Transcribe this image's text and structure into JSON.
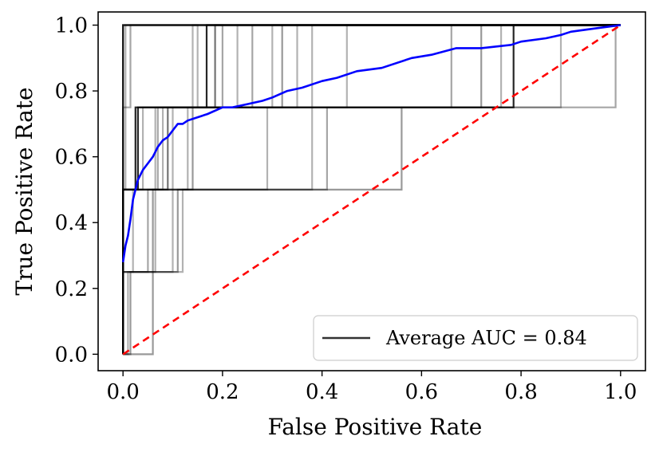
{
  "chart_data": {
    "type": "line",
    "xlabel": "False Positive Rate",
    "ylabel": "True Positive Rate",
    "xlim": [
      -0.05,
      1.05
    ],
    "ylim": [
      -0.05,
      1.04
    ],
    "xticks": [
      "0.0",
      "0.2",
      "0.4",
      "0.6",
      "0.8",
      "1.0"
    ],
    "yticks": [
      "0.0",
      "0.2",
      "0.4",
      "0.6",
      "0.8",
      "1.0"
    ],
    "xtick_values": [
      0,
      0.2,
      0.4,
      0.6,
      0.8,
      1.0
    ],
    "ytick_values": [
      0,
      0.2,
      0.4,
      0.6,
      0.8,
      1.0
    ],
    "grid": false,
    "legend": {
      "placement": "bottom-right",
      "entries": [
        {
          "label": "Average AUC = 0.84",
          "color": "#333333"
        }
      ]
    },
    "colors": {
      "mean_curve": "#0000ff",
      "chance_line": "#ff0000",
      "fold_curves": "#000000"
    },
    "mean_curve": {
      "x": [
        0,
        0.005,
        0.01,
        0.015,
        0.02,
        0.025,
        0.03,
        0.04,
        0.05,
        0.06,
        0.07,
        0.08,
        0.09,
        0.1,
        0.11,
        0.12,
        0.13,
        0.15,
        0.17,
        0.2,
        0.22,
        0.25,
        0.28,
        0.3,
        0.33,
        0.36,
        0.4,
        0.43,
        0.47,
        0.52,
        0.58,
        0.62,
        0.67,
        0.72,
        0.78,
        0.8,
        0.85,
        0.88,
        0.9,
        0.95,
        1.0
      ],
      "y": [
        0.28,
        0.33,
        0.36,
        0.41,
        0.47,
        0.5,
        0.53,
        0.56,
        0.58,
        0.6,
        0.63,
        0.65,
        0.66,
        0.68,
        0.7,
        0.7,
        0.71,
        0.72,
        0.73,
        0.75,
        0.75,
        0.76,
        0.77,
        0.78,
        0.8,
        0.81,
        0.83,
        0.84,
        0.86,
        0.87,
        0.9,
        0.91,
        0.93,
        0.93,
        0.94,
        0.95,
        0.96,
        0.97,
        0.98,
        0.99,
        1.0
      ]
    },
    "chance_line": {
      "x": [
        0,
        1
      ],
      "y": [
        0,
        1
      ]
    },
    "fold_curves": [
      {
        "alpha": 0.85,
        "x": [
          0,
          0,
          0.025,
          0.025,
          0.168,
          0.168,
          0.785,
          0.785,
          1.0
        ],
        "y": [
          0,
          0.5,
          0.5,
          0.75,
          0.75,
          1.0,
          1.0,
          1.0,
          1.0
        ]
      },
      {
        "alpha": 0.85,
        "x": [
          0,
          0,
          0.0,
          0.0,
          0.03,
          0.03,
          0.785,
          0.785,
          1.0
        ],
        "y": [
          0,
          0.25,
          0.25,
          0.5,
          0.5,
          0.75,
          0.75,
          1.0,
          1.0
        ]
      },
      {
        "alpha": 0.75,
        "x": [
          0,
          0,
          0.0,
          0.0,
          0.0,
          0.0,
          0.405,
          0.405,
          1.0
        ],
        "y": [
          0,
          0.5,
          0.5,
          0.75,
          0.75,
          1.0,
          1.0,
          1.0,
          1.0
        ]
      },
      {
        "alpha": 0.7,
        "x": [
          0,
          0,
          0.0,
          0.0,
          0.61,
          0.61,
          1.0
        ],
        "y": [
          0,
          0.5,
          0.5,
          1.0,
          1.0,
          1.0,
          1.0
        ]
      },
      {
        "alpha": 0.55,
        "x": [
          0,
          0,
          0.09,
          0.09,
          0.185,
          0.185,
          0.47,
          0.47,
          1.0
        ],
        "y": [
          0,
          0.5,
          0.5,
          0.75,
          0.75,
          1.0,
          1.0,
          1.0,
          1.0
        ]
      },
      {
        "alpha": 0.4,
        "x": [
          0,
          0.06,
          0.06,
          0.06,
          0.56,
          0.56,
          0.72,
          0.72,
          1.0
        ],
        "y": [
          0,
          0,
          0.25,
          0.5,
          0.5,
          0.75,
          0.75,
          1.0,
          1.0
        ]
      },
      {
        "alpha": 0.4,
        "x": [
          0,
          0.015,
          0.015,
          0.11,
          0.11,
          0.14,
          0.14,
          0.32,
          0.32,
          1.0
        ],
        "y": [
          0,
          0,
          0.25,
          0.25,
          0.5,
          0.5,
          0.75,
          0.75,
          1.0,
          1.0
        ]
      },
      {
        "alpha": 0.35,
        "x": [
          0,
          0,
          0.015,
          0.015,
          0.2,
          0.2,
          0.99,
          0.99,
          1.0
        ],
        "y": [
          0,
          0.75,
          0.75,
          1.0,
          1.0,
          0.75,
          0.75,
          1.0,
          1.0
        ]
      },
      {
        "alpha": 0.35,
        "x": [
          0,
          0,
          0.05,
          0.05,
          0.41,
          0.41,
          0.66,
          0.66,
          1.0
        ],
        "y": [
          0,
          0.25,
          0.25,
          0.5,
          0.5,
          0.75,
          0.75,
          1.0,
          1.0
        ]
      },
      {
        "alpha": 0.35,
        "x": [
          0,
          0,
          0.07,
          0.07,
          0.26,
          0.26,
          0.53,
          0.53,
          1.0
        ],
        "y": [
          0,
          0.5,
          0.5,
          0.75,
          0.75,
          1.0,
          1.0,
          1.0,
          1.0
        ]
      },
      {
        "alpha": 0.3,
        "x": [
          0,
          0,
          0.1,
          0.1,
          0.23,
          0.23,
          0.86,
          0.86,
          1.0
        ],
        "y": [
          0,
          0.25,
          0.25,
          0.75,
          0.75,
          1.0,
          1.0,
          1.0,
          1.0
        ]
      },
      {
        "alpha": 0.3,
        "x": [
          0,
          0,
          0.04,
          0.04,
          0.3,
          0.3,
          0.9,
          0.9,
          1.0
        ],
        "y": [
          0,
          0.5,
          0.5,
          0.75,
          0.75,
          1.0,
          1.0,
          1.0,
          1.0
        ]
      },
      {
        "alpha": 0.3,
        "x": [
          0,
          0,
          0.12,
          0.12,
          0.38,
          0.38,
          0.94,
          0.94,
          1.0
        ],
        "y": [
          0,
          0.25,
          0.25,
          0.5,
          0.5,
          1.0,
          1.0,
          1.0,
          1.0
        ]
      },
      {
        "alpha": 0.3,
        "x": [
          0,
          0,
          0.08,
          0.08,
          0.35,
          0.35,
          0.95,
          0.95,
          1.0
        ],
        "y": [
          0,
          0.5,
          0.5,
          0.75,
          0.75,
          1.0,
          1.0,
          1.0,
          1.0
        ]
      },
      {
        "alpha": 0.3,
        "x": [
          0,
          0.01,
          0.01,
          0.065,
          0.065,
          0.14,
          0.14,
          0.82,
          0.82,
          1.0
        ],
        "y": [
          0,
          0,
          0.25,
          0.25,
          0.75,
          0.75,
          1.0,
          1.0,
          1.0,
          1.0
        ]
      },
      {
        "alpha": 0.3,
        "x": [
          0,
          0,
          0.02,
          0.02,
          0.29,
          0.29,
          0.88,
          0.88,
          1.0
        ],
        "y": [
          0,
          0.25,
          0.25,
          0.5,
          0.5,
          0.75,
          0.75,
          1.0,
          1.0
        ]
      },
      {
        "alpha": 0.3,
        "x": [
          0,
          0,
          0.13,
          0.13,
          0.45,
          0.45,
          0.7,
          0.7,
          1.0
        ],
        "y": [
          0,
          0.5,
          0.5,
          0.75,
          0.75,
          1.0,
          1.0,
          1.0,
          1.0
        ]
      },
      {
        "alpha": 0.3,
        "x": [
          0,
          0,
          0.005,
          0.005,
          0.15,
          0.15,
          0.76,
          0.76,
          1.0
        ],
        "y": [
          0,
          0.5,
          0.5,
          1.0,
          1.0,
          0.75,
          0.75,
          1.0,
          1.0
        ]
      }
    ]
  }
}
